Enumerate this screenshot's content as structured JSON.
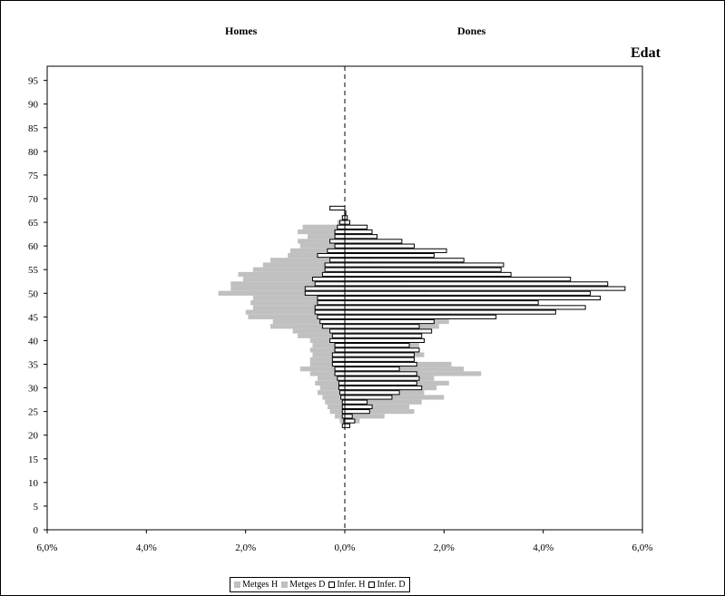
{
  "chart_data": {
    "type": "bar",
    "orientation": "horizontal",
    "layout": "population-pyramid",
    "title": "",
    "left_label": "Homes",
    "right_label": "Dones",
    "ylabel": "Edat",
    "xlim": [
      -6,
      6
    ],
    "ylim": [
      0,
      98
    ],
    "x_ticks": [
      "6,0%",
      "4,0%",
      "2,0%",
      "0,0%",
      "2,0%",
      "4,0%",
      "6,0%"
    ],
    "x_tick_values": [
      -6,
      -4,
      -2,
      0,
      2,
      4,
      6
    ],
    "y_ticks": [
      0,
      5,
      10,
      15,
      20,
      25,
      30,
      35,
      40,
      45,
      50,
      55,
      60,
      65,
      70,
      75,
      80,
      85,
      90,
      95
    ],
    "grid": false,
    "legend_position": "bottom",
    "ages": [
      22,
      23,
      24,
      25,
      26,
      27,
      28,
      29,
      30,
      31,
      32,
      33,
      34,
      35,
      36,
      37,
      38,
      39,
      40,
      41,
      42,
      43,
      44,
      45,
      46,
      47,
      48,
      49,
      50,
      51,
      52,
      53,
      54,
      55,
      56,
      57,
      58,
      59,
      60,
      61,
      62,
      63,
      64,
      65,
      66,
      67,
      68
    ],
    "series": [
      {
        "name": "Metges H",
        "style": "gray",
        "side": "left",
        "values": [
          0.05,
          0.1,
          0.2,
          0.3,
          0.35,
          0.4,
          0.45,
          0.55,
          0.5,
          0.6,
          0.55,
          0.7,
          0.9,
          0.7,
          0.7,
          0.65,
          0.7,
          0.65,
          0.7,
          0.95,
          1.05,
          1.5,
          1.45,
          1.95,
          2.0,
          1.85,
          1.9,
          1.85,
          2.55,
          2.3,
          2.3,
          2.05,
          2.15,
          1.85,
          1.65,
          1.5,
          1.15,
          1.1,
          0.9,
          0.95,
          0.75,
          0.95,
          0.85,
          0.15,
          0.05,
          0.02,
          0.0
        ]
      },
      {
        "name": "Metges D",
        "style": "gray",
        "side": "right",
        "values": [
          0.1,
          0.3,
          0.8,
          1.4,
          1.3,
          1.55,
          2.0,
          1.6,
          1.85,
          2.1,
          1.8,
          2.75,
          2.4,
          2.15,
          1.4,
          1.6,
          1.5,
          1.5,
          1.3,
          1.5,
          1.35,
          1.9,
          2.1,
          2.15,
          2.05,
          1.95,
          1.9,
          1.7,
          1.65,
          1.35,
          1.2,
          1.0,
          0.9,
          0.75,
          0.6,
          0.55,
          0.5,
          0.45,
          0.35,
          0.2,
          0.15,
          0.1,
          0.05,
          0.03,
          0.0,
          0.0,
          0.0
        ]
      },
      {
        "name": "Infer. H",
        "style": "hollow",
        "side": "left",
        "values": [
          0.05,
          0.02,
          0.05,
          0.05,
          0.05,
          0.05,
          0.08,
          0.1,
          0.12,
          0.12,
          0.15,
          0.2,
          0.2,
          0.25,
          0.25,
          0.25,
          0.2,
          0.2,
          0.3,
          0.25,
          0.3,
          0.45,
          0.5,
          0.55,
          0.6,
          0.6,
          0.55,
          0.55,
          0.8,
          0.8,
          0.6,
          0.65,
          0.45,
          0.4,
          0.4,
          0.3,
          0.55,
          0.35,
          0.2,
          0.3,
          0.2,
          0.2,
          0.15,
          0.1,
          0.05,
          0.0,
          0.3
        ]
      },
      {
        "name": "Infer. D",
        "style": "hollow",
        "side": "right",
        "values": [
          0.1,
          0.2,
          0.15,
          0.5,
          0.55,
          0.45,
          0.95,
          1.1,
          1.55,
          1.45,
          1.5,
          1.45,
          1.1,
          1.45,
          1.4,
          1.4,
          1.5,
          1.3,
          1.6,
          1.55,
          1.75,
          1.5,
          1.8,
          3.05,
          4.25,
          4.85,
          3.9,
          5.15,
          4.95,
          5.65,
          5.3,
          4.55,
          3.35,
          3.15,
          3.2,
          2.4,
          1.8,
          2.05,
          1.4,
          1.15,
          0.65,
          0.55,
          0.45,
          0.1,
          0.05,
          0.02,
          0.0
        ]
      }
    ]
  }
}
